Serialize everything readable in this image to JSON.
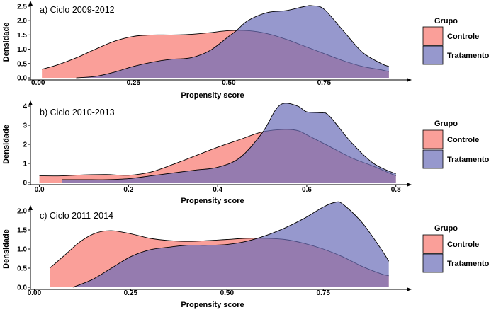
{
  "chart_data": [
    {
      "type": "area",
      "title": "a) Ciclo 2009-2012",
      "xlabel": "Propensity score",
      "ylabel": "Densidade",
      "xlim": [
        -0.02,
        0.95
      ],
      "ylim": [
        0,
        2.5
      ],
      "x_ticks": [
        0.0,
        0.25,
        0.5,
        0.75
      ],
      "x_tick_labels": [
        "0.00",
        "0.25",
        "0.50",
        "0.75"
      ],
      "y_ticks": [
        0,
        0.5,
        1.0,
        1.5,
        2.0,
        2.5
      ],
      "y_tick_labels": [
        "0.0",
        "0.5",
        "1.0",
        "1.5",
        "2.0",
        "2.5"
      ],
      "grid": false,
      "legend": {
        "title": "Grupo",
        "position": "right"
      },
      "series": [
        {
          "name": "Controle",
          "color": "#F8766D",
          "x": [
            0.01,
            0.05,
            0.1,
            0.15,
            0.2,
            0.25,
            0.3,
            0.35,
            0.4,
            0.45,
            0.5,
            0.55,
            0.6,
            0.65,
            0.7,
            0.75,
            0.8,
            0.85,
            0.9,
            0.92
          ],
          "y": [
            0.3,
            0.45,
            0.7,
            1.0,
            1.28,
            1.45,
            1.5,
            1.5,
            1.52,
            1.58,
            1.65,
            1.65,
            1.55,
            1.35,
            1.1,
            0.85,
            0.6,
            0.4,
            0.28,
            0.22
          ]
        },
        {
          "name": "Tratamento",
          "color": "#7A7FC2",
          "x": [
            0.1,
            0.15,
            0.2,
            0.25,
            0.3,
            0.35,
            0.4,
            0.45,
            0.5,
            0.52,
            0.55,
            0.6,
            0.65,
            0.7,
            0.72,
            0.75,
            0.8,
            0.85,
            0.9,
            0.92
          ],
          "y": [
            0.0,
            0.05,
            0.2,
            0.4,
            0.55,
            0.65,
            0.7,
            0.95,
            1.45,
            1.65,
            2.0,
            2.28,
            2.35,
            2.5,
            2.52,
            2.4,
            1.65,
            0.9,
            0.5,
            0.4
          ]
        }
      ]
    },
    {
      "type": "area",
      "title": "b) Ciclo 2010-2013",
      "xlabel": "Propensity score",
      "ylabel": "Densidade",
      "xlim": [
        -0.02,
        0.81
      ],
      "ylim": [
        0,
        4
      ],
      "x_ticks": [
        0.0,
        0.2,
        0.4,
        0.6,
        0.8
      ],
      "x_tick_labels": [
        "0.0",
        "0.2",
        "0.4",
        "0.6",
        "0.8"
      ],
      "y_ticks": [
        0,
        1,
        2,
        3,
        4
      ],
      "y_tick_labels": [
        "0",
        "1",
        "2",
        "3",
        "4"
      ],
      "grid": false,
      "legend": {
        "title": "Grupo",
        "position": "right"
      },
      "series": [
        {
          "name": "Controle",
          "color": "#F8766D",
          "x": [
            0.0,
            0.05,
            0.1,
            0.15,
            0.2,
            0.25,
            0.3,
            0.35,
            0.4,
            0.45,
            0.5,
            0.55,
            0.58,
            0.6,
            0.65,
            0.7,
            0.75,
            0.8
          ],
          "y": [
            0.35,
            0.35,
            0.4,
            0.42,
            0.38,
            0.55,
            0.95,
            1.4,
            1.85,
            2.25,
            2.65,
            2.78,
            2.72,
            2.5,
            1.9,
            1.3,
            0.85,
            0.35
          ]
        },
        {
          "name": "Tratamento",
          "color": "#7A7FC2",
          "x": [
            0.05,
            0.1,
            0.15,
            0.2,
            0.25,
            0.3,
            0.35,
            0.4,
            0.45,
            0.5,
            0.53,
            0.55,
            0.58,
            0.6,
            0.63,
            0.65,
            0.7,
            0.75,
            0.8
          ],
          "y": [
            0.15,
            0.15,
            0.15,
            0.2,
            0.35,
            0.5,
            0.65,
            0.8,
            1.3,
            2.6,
            3.8,
            4.15,
            4.0,
            3.7,
            3.65,
            3.5,
            2.1,
            1.0,
            0.45
          ]
        }
      ]
    },
    {
      "type": "area",
      "title": "c) Ciclo 2011-2014",
      "xlabel": "Propensity score",
      "ylabel": "Densidade",
      "xlim": [
        -0.01,
        0.95
      ],
      "ylim": [
        0,
        2.0
      ],
      "x_ticks": [
        0.0,
        0.25,
        0.5,
        0.75
      ],
      "x_tick_labels": [
        "0.00",
        "0.25",
        "0.50",
        "0.75"
      ],
      "y_ticks": [
        0,
        0.5,
        1.0,
        1.5,
        2.0
      ],
      "y_tick_labels": [
        "0.0",
        "0.5",
        "1.0",
        "1.5",
        "2.0"
      ],
      "grid": false,
      "legend": {
        "title": "Grupo",
        "position": "right"
      },
      "series": [
        {
          "name": "Controle",
          "color": "#F8766D",
          "x": [
            0.04,
            0.08,
            0.12,
            0.16,
            0.2,
            0.25,
            0.3,
            0.35,
            0.4,
            0.45,
            0.5,
            0.55,
            0.6,
            0.65,
            0.7,
            0.75,
            0.8,
            0.85,
            0.9,
            0.92
          ],
          "y": [
            0.5,
            0.85,
            1.2,
            1.42,
            1.48,
            1.4,
            1.28,
            1.22,
            1.2,
            1.22,
            1.25,
            1.28,
            1.28,
            1.25,
            1.15,
            1.0,
            0.8,
            0.55,
            0.35,
            0.3
          ]
        },
        {
          "name": "Tratamento",
          "color": "#7A7FC2",
          "x": [
            0.1,
            0.15,
            0.2,
            0.25,
            0.3,
            0.35,
            0.4,
            0.45,
            0.5,
            0.55,
            0.6,
            0.65,
            0.7,
            0.75,
            0.78,
            0.8,
            0.85,
            0.9,
            0.92
          ],
          "y": [
            0.0,
            0.2,
            0.5,
            0.8,
            0.98,
            1.05,
            1.1,
            1.1,
            1.12,
            1.2,
            1.35,
            1.55,
            1.8,
            2.1,
            2.22,
            2.18,
            1.7,
            1.0,
            0.68
          ]
        }
      ]
    }
  ]
}
